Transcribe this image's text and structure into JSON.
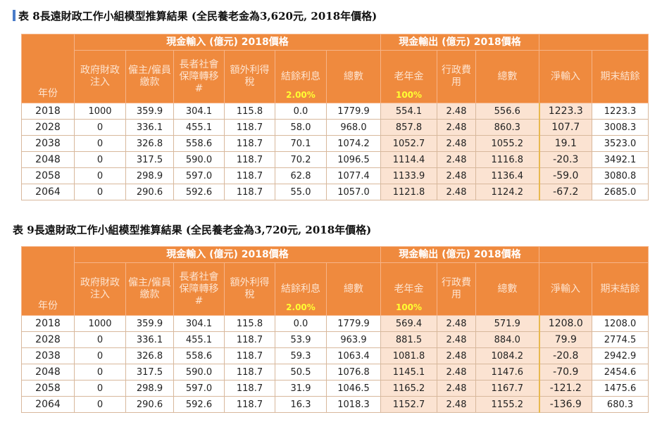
{
  "tables": [
    {
      "title": "表 8長遠財政工作小組模型推算結果 (全民養老金為3,620元, 2018年價格)",
      "inflow_header": "現金輸入 (億元) 2018價格",
      "outflow_header": "現金輸出 (億元) 2018價格",
      "columns": [
        "年份",
        "政府財政注入",
        "僱主/僱員 繳款",
        "長者社會保障轉移#",
        "額外利得稅",
        "結餘利息",
        "總數",
        "老年金",
        "行政費用",
        "總數",
        "淨輸入",
        "期末結餘"
      ],
      "interest_rate": "2.00%",
      "pension_rate": "100%",
      "rows": [
        [
          "2018",
          "1000",
          "359.9",
          "304.1",
          "115.8",
          "0.0",
          "1779.9",
          "554.1",
          "2.48",
          "556.6",
          "1223.3",
          "1223.3"
        ],
        [
          "2028",
          "0",
          "336.1",
          "455.1",
          "118.7",
          "58.0",
          "968.0",
          "857.8",
          "2.48",
          "860.3",
          "107.7",
          "3008.3"
        ],
        [
          "2038",
          "0",
          "326.8",
          "558.6",
          "118.7",
          "70.1",
          "1074.2",
          "1052.7",
          "2.48",
          "1055.2",
          "19.1",
          "3523.0"
        ],
        [
          "2048",
          "0",
          "317.5",
          "590.0",
          "118.7",
          "70.2",
          "1096.5",
          "1114.4",
          "2.48",
          "1116.8",
          "-20.3",
          "3492.1"
        ],
        [
          "2058",
          "0",
          "298.9",
          "597.0",
          "118.7",
          "62.8",
          "1077.4",
          "1133.9",
          "2.48",
          "1136.4",
          "-59.0",
          "3080.8"
        ],
        [
          "2064",
          "0",
          "290.6",
          "592.6",
          "118.7",
          "55.0",
          "1057.0",
          "1121.8",
          "2.48",
          "1124.2",
          "-67.2",
          "2685.0"
        ]
      ]
    },
    {
      "title": "表 9長遠財政工作小組模型推算結果 (全民養老金為3,720元, 2018年價格)",
      "inflow_header": "現金輸入 (億元) 2018價格",
      "outflow_header": "現金輸出 (億元) 2018價格",
      "columns": [
        "年份",
        "政府財政注入",
        "僱主/僱員 繳款",
        "長者社會保障轉移#",
        "額外利得稅",
        "結餘利息",
        "總數",
        "老年金",
        "行政費用",
        "總數",
        "淨輸入",
        "期末結餘"
      ],
      "interest_rate": "2.00%",
      "pension_rate": "100%",
      "rows": [
        [
          "2018",
          "1000",
          "359.9",
          "304.1",
          "115.8",
          "0.0",
          "1779.9",
          "569.4",
          "2.48",
          "571.9",
          "1208.0",
          "1208.0"
        ],
        [
          "2028",
          "0",
          "336.1",
          "455.1",
          "118.7",
          "53.9",
          "963.9",
          "881.5",
          "2.48",
          "884.0",
          "79.9",
          "2774.5"
        ],
        [
          "2038",
          "0",
          "326.8",
          "558.6",
          "118.7",
          "59.3",
          "1063.4",
          "1081.8",
          "2.48",
          "1084.2",
          "-20.8",
          "2942.9"
        ],
        [
          "2048",
          "0",
          "317.5",
          "590.0",
          "118.7",
          "50.5",
          "1076.8",
          "1145.1",
          "2.48",
          "1147.6",
          "-70.9",
          "2454.6"
        ],
        [
          "2058",
          "0",
          "298.9",
          "597.0",
          "118.7",
          "31.9",
          "1046.5",
          "1165.2",
          "2.48",
          "1167.7",
          "-121.2",
          "1475.6"
        ],
        [
          "2064",
          "0",
          "290.6",
          "592.6",
          "118.7",
          "16.3",
          "1018.3",
          "1152.7",
          "2.48",
          "1155.2",
          "-136.9",
          "680.3"
        ]
      ]
    }
  ]
}
